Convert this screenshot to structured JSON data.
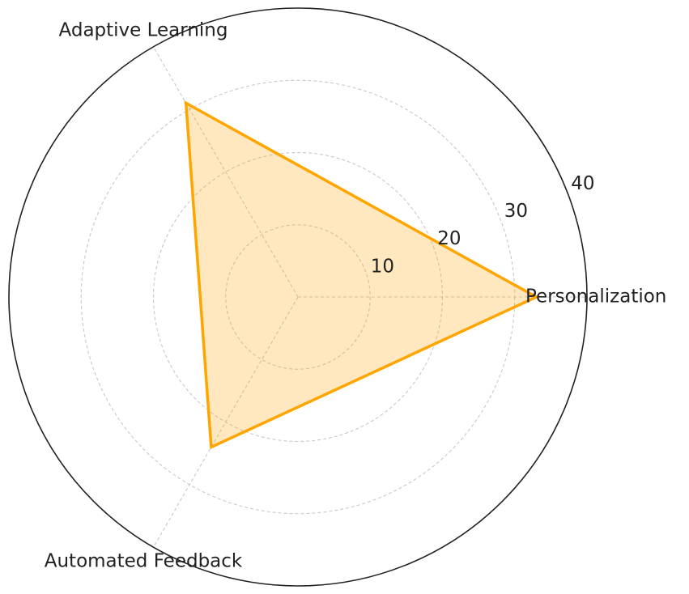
{
  "chart_data": {
    "type": "radar",
    "title": "",
    "categories": [
      "Personalization",
      "Adaptive Learning",
      "Automated Feedback"
    ],
    "series": [
      {
        "values": [
          33,
          31,
          24
        ],
        "color": "#FFA500",
        "fill_color": "#FFA500",
        "fill_opacity": 0.25
      }
    ],
    "rlim": [
      0,
      40
    ],
    "rticks": [
      10,
      20,
      30,
      40
    ],
    "rtick_labels": [
      "10",
      "20",
      "30",
      "40"
    ],
    "grid": true,
    "grid_style": "dashed",
    "grid_color": "#c8c8c8",
    "frame_color": "#222222"
  }
}
